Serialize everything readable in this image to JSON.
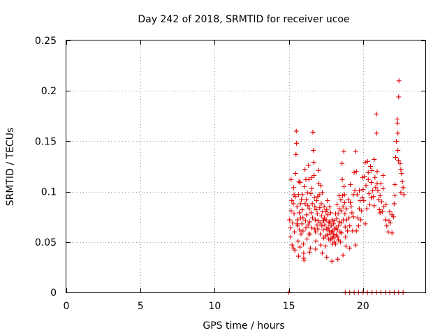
{
  "chart_data": {
    "type": "scatter",
    "title": "Day 242 of 2018, SRMTID for receiver ucoe",
    "xlabel": "GPS time / hours",
    "ylabel": "SRMTID / TECUs",
    "xlim": [
      0,
      24.2
    ],
    "ylim": [
      0,
      0.25
    ],
    "xticks": [
      0,
      5,
      10,
      15,
      20
    ],
    "xtick_labels": [
      "0",
      "5",
      "10",
      "15",
      "20"
    ],
    "yticks": [
      0,
      0.05,
      0.1,
      0.15,
      0.2,
      0.25
    ],
    "ytick_labels": [
      "0",
      "0.05",
      "0.1",
      "0.15",
      "0.2",
      "0.25"
    ],
    "grid": true,
    "legend": null,
    "marker": "+",
    "color": "#e00000",
    "series": [
      {
        "name": "SRMTID",
        "points": [
          [
            15.0,
            0.0
          ],
          [
            18.8,
            0.0
          ],
          [
            19.1,
            0.0
          ],
          [
            19.4,
            0.0
          ],
          [
            19.7,
            0.0
          ],
          [
            20.0,
            0.0
          ],
          [
            20.3,
            0.0
          ],
          [
            20.6,
            0.0
          ],
          [
            20.9,
            0.0
          ],
          [
            21.2,
            0.0
          ],
          [
            21.5,
            0.0
          ],
          [
            21.8,
            0.0
          ],
          [
            22.1,
            0.0
          ],
          [
            22.4,
            0.0
          ],
          [
            22.7,
            0.0
          ],
          [
            15.05,
            0.072
          ],
          [
            15.1,
            0.064
          ],
          [
            15.12,
            0.055
          ],
          [
            15.15,
            0.081
          ],
          [
            15.2,
            0.091
          ],
          [
            15.22,
            0.047
          ],
          [
            15.25,
            0.069
          ],
          [
            15.3,
            0.088
          ],
          [
            15.32,
            0.104
          ],
          [
            15.35,
            0.078
          ],
          [
            15.38,
            0.06
          ],
          [
            15.4,
            0.042
          ],
          [
            15.42,
            0.095
          ],
          [
            15.45,
            0.118
          ],
          [
            15.48,
            0.137
          ],
          [
            15.5,
            0.16
          ],
          [
            15.52,
            0.148
          ],
          [
            15.55,
            0.085
          ],
          [
            15.58,
            0.072
          ],
          [
            15.6,
            0.066
          ],
          [
            15.62,
            0.051
          ],
          [
            15.65,
            0.097
          ],
          [
            15.68,
            0.11
          ],
          [
            15.7,
            0.079
          ],
          [
            15.72,
            0.062
          ],
          [
            15.75,
            0.045
          ],
          [
            15.78,
            0.088
          ],
          [
            15.8,
            0.074
          ],
          [
            15.82,
            0.058
          ],
          [
            15.85,
            0.092
          ],
          [
            15.88,
            0.068
          ],
          [
            15.9,
            0.082
          ],
          [
            15.92,
            0.097
          ],
          [
            15.95,
            0.061
          ],
          [
            15.98,
            0.048
          ],
          [
            16.0,
            0.039
          ],
          [
            16.02,
            0.032
          ],
          [
            16.05,
            0.105
          ],
          [
            16.08,
            0.122
          ],
          [
            16.1,
            0.088
          ],
          [
            16.12,
            0.071
          ],
          [
            16.15,
            0.064
          ],
          [
            16.18,
            0.092
          ],
          [
            16.2,
            0.077
          ],
          [
            16.22,
            0.053
          ],
          [
            16.25,
            0.099
          ],
          [
            16.28,
            0.086
          ],
          [
            16.3,
            0.067
          ],
          [
            16.32,
            0.126
          ],
          [
            16.35,
            0.112
          ],
          [
            16.38,
            0.083
          ],
          [
            16.4,
            0.07
          ],
          [
            16.42,
            0.058
          ],
          [
            16.45,
            0.044
          ],
          [
            16.48,
            0.098
          ],
          [
            16.5,
            0.079
          ],
          [
            16.52,
            0.064
          ],
          [
            16.55,
            0.103
          ],
          [
            16.58,
            0.088
          ],
          [
            16.6,
            0.074
          ],
          [
            16.62,
            0.159
          ],
          [
            16.65,
            0.141
          ],
          [
            16.68,
            0.129
          ],
          [
            16.7,
            0.116
          ],
          [
            16.72,
            0.094
          ],
          [
            16.75,
            0.085
          ],
          [
            16.78,
            0.072
          ],
          [
            16.8,
            0.06
          ],
          [
            16.82,
            0.051
          ],
          [
            16.85,
            0.082
          ],
          [
            16.88,
            0.091
          ],
          [
            16.9,
            0.067
          ],
          [
            16.92,
            0.078
          ],
          [
            16.95,
            0.063
          ],
          [
            16.98,
            0.071
          ],
          [
            17.0,
            0.121
          ],
          [
            17.02,
            0.108
          ],
          [
            17.05,
            0.097
          ],
          [
            17.08,
            0.084
          ],
          [
            17.1,
            0.069
          ],
          [
            17.12,
            0.058
          ],
          [
            17.15,
            0.047
          ],
          [
            17.18,
            0.088
          ],
          [
            17.2,
            0.076
          ],
          [
            17.22,
            0.066
          ],
          [
            17.25,
            0.099
          ],
          [
            17.28,
            0.08
          ],
          [
            17.3,
            0.071
          ],
          [
            17.32,
            0.062
          ],
          [
            17.35,
            0.054
          ],
          [
            17.38,
            0.085
          ],
          [
            17.4,
            0.074
          ],
          [
            17.42,
            0.067
          ],
          [
            17.45,
            0.056
          ],
          [
            17.48,
            0.046
          ],
          [
            17.5,
            0.08
          ],
          [
            17.52,
            0.072
          ],
          [
            17.55,
            0.063
          ],
          [
            17.58,
            0.057
          ],
          [
            17.6,
            0.091
          ],
          [
            17.62,
            0.077
          ],
          [
            17.65,
            0.064
          ],
          [
            17.68,
            0.053
          ],
          [
            17.7,
            0.069
          ],
          [
            17.72,
            0.061
          ],
          [
            17.75,
            0.07
          ],
          [
            17.78,
            0.058
          ],
          [
            17.8,
            0.052
          ],
          [
            17.82,
            0.079
          ],
          [
            17.85,
            0.066
          ],
          [
            17.88,
            0.06
          ],
          [
            17.9,
            0.054
          ],
          [
            17.92,
            0.072
          ],
          [
            17.95,
            0.061
          ],
          [
            17.98,
            0.055
          ],
          [
            18.0,
            0.068
          ],
          [
            18.02,
            0.058
          ],
          [
            18.05,
            0.05
          ],
          [
            18.08,
            0.071
          ],
          [
            18.1,
            0.063
          ],
          [
            18.12,
            0.055
          ],
          [
            18.15,
            0.048
          ],
          [
            18.18,
            0.064
          ],
          [
            18.2,
            0.057
          ],
          [
            18.22,
            0.073
          ],
          [
            18.25,
            0.087
          ],
          [
            18.28,
            0.062
          ],
          [
            18.3,
            0.055
          ],
          [
            18.32,
            0.078
          ],
          [
            18.35,
            0.066
          ],
          [
            18.38,
            0.096
          ],
          [
            18.4,
            0.083
          ],
          [
            18.42,
            0.07
          ],
          [
            18.45,
            0.06
          ],
          [
            18.48,
            0.05
          ],
          [
            18.5,
            0.092
          ],
          [
            18.52,
            0.081
          ],
          [
            18.55,
            0.069
          ],
          [
            18.58,
            0.128
          ],
          [
            18.6,
            0.112
          ],
          [
            18.62,
            0.096
          ],
          [
            18.65,
            0.085
          ],
          [
            18.68,
            0.072
          ],
          [
            18.7,
            0.14
          ],
          [
            18.72,
            0.105
          ],
          [
            18.75,
            0.089
          ],
          [
            18.78,
            0.078
          ],
          [
            18.8,
            0.065
          ],
          [
            18.82,
            0.055
          ],
          [
            18.85,
            0.046
          ],
          [
            18.88,
            0.083
          ],
          [
            18.9,
            0.072
          ],
          [
            15.3,
            0.044
          ],
          [
            15.65,
            0.036
          ],
          [
            16.0,
            0.034
          ],
          [
            16.4,
            0.04
          ],
          [
            16.8,
            0.043
          ],
          [
            17.25,
            0.039
          ],
          [
            17.55,
            0.035
          ],
          [
            17.9,
            0.031
          ],
          [
            18.3,
            0.033
          ],
          [
            18.65,
            0.037
          ],
          [
            19.1,
            0.044
          ],
          [
            19.5,
            0.047
          ],
          [
            19.0,
            0.092
          ],
          [
            19.05,
            0.074
          ],
          [
            19.1,
            0.066
          ],
          [
            19.15,
            0.107
          ],
          [
            19.2,
            0.085
          ],
          [
            19.25,
            0.079
          ],
          [
            19.3,
            0.061
          ],
          [
            19.35,
            0.097
          ],
          [
            19.4,
            0.119
          ],
          [
            19.45,
            0.101
          ],
          [
            19.5,
            0.14
          ],
          [
            19.55,
            0.12
          ],
          [
            19.6,
            0.097
          ],
          [
            19.65,
            0.074
          ],
          [
            19.7,
            0.066
          ],
          [
            19.75,
            0.083
          ],
          [
            19.8,
            0.091
          ],
          [
            19.85,
            0.072
          ],
          [
            19.9,
            0.081
          ],
          [
            19.95,
            0.094
          ],
          [
            20.0,
            0.102
          ],
          [
            20.05,
            0.091
          ],
          [
            20.1,
            0.115
          ],
          [
            20.15,
            0.129
          ],
          [
            20.2,
            0.106
          ],
          [
            20.25,
            0.083
          ],
          [
            20.3,
            0.13
          ],
          [
            20.35,
            0.112
          ],
          [
            20.4,
            0.098
          ],
          [
            20.45,
            0.087
          ],
          [
            20.5,
            0.125
          ],
          [
            20.55,
            0.109
          ],
          [
            20.6,
            0.121
          ],
          [
            20.65,
            0.101
          ],
          [
            20.7,
            0.095
          ],
          [
            20.75,
            0.086
          ],
          [
            20.8,
            0.114
          ],
          [
            20.85,
            0.104
          ],
          [
            20.9,
            0.177
          ],
          [
            20.92,
            0.158
          ],
          [
            20.95,
            0.12
          ],
          [
            21.0,
            0.101
          ],
          [
            21.05,
            0.092
          ],
          [
            21.1,
            0.082
          ],
          [
            21.15,
            0.096
          ],
          [
            21.2,
            0.108
          ],
          [
            21.25,
            0.09
          ],
          [
            21.3,
            0.08
          ],
          [
            21.35,
            0.103
          ],
          [
            21.4,
            0.085
          ],
          [
            21.5,
            0.072
          ],
          [
            21.6,
            0.066
          ],
          [
            21.7,
            0.06
          ],
          [
            21.8,
            0.08
          ],
          [
            21.85,
            0.069
          ],
          [
            21.95,
            0.059
          ],
          [
            22.05,
            0.075
          ],
          [
            22.1,
            0.088
          ],
          [
            22.15,
            0.107
          ],
          [
            22.2,
            0.134
          ],
          [
            22.25,
            0.15
          ],
          [
            22.3,
            0.172
          ],
          [
            22.32,
            0.168
          ],
          [
            22.35,
            0.158
          ],
          [
            22.38,
            0.131
          ],
          [
            22.4,
            0.194
          ],
          [
            22.42,
            0.21
          ],
          [
            22.5,
            0.128
          ],
          [
            22.55,
            0.122
          ],
          [
            22.6,
            0.118
          ],
          [
            22.65,
            0.11
          ],
          [
            22.7,
            0.104
          ],
          [
            22.75,
            0.097
          ],
          [
            15.15,
            0.112
          ],
          [
            15.35,
            0.097
          ],
          [
            15.55,
            0.068
          ],
          [
            15.75,
            0.109
          ],
          [
            15.95,
            0.074
          ],
          [
            16.15,
            0.112
          ],
          [
            16.35,
            0.058
          ],
          [
            16.55,
            0.114
          ],
          [
            16.75,
            0.063
          ],
          [
            16.95,
            0.095
          ],
          [
            17.15,
            0.106
          ],
          [
            17.35,
            0.071
          ],
          [
            17.55,
            0.082
          ],
          [
            17.75,
            0.085
          ],
          [
            17.95,
            0.048
          ],
          [
            18.15,
            0.078
          ],
          [
            18.35,
            0.052
          ],
          [
            18.55,
            0.059
          ],
          [
            18.75,
            0.097
          ],
          [
            18.95,
            0.061
          ],
          [
            19.15,
            0.089
          ],
          [
            19.35,
            0.075
          ],
          [
            19.55,
            0.061
          ],
          [
            19.75,
            0.101
          ],
          [
            19.95,
            0.114
          ],
          [
            20.15,
            0.068
          ],
          [
            20.35,
            0.119
          ],
          [
            20.55,
            0.094
          ],
          [
            20.75,
            0.132
          ],
          [
            20.95,
            0.108
          ],
          [
            21.15,
            0.079
          ],
          [
            21.35,
            0.116
          ],
          [
            21.55,
            0.087
          ],
          [
            21.75,
            0.071
          ],
          [
            21.95,
            0.077
          ],
          [
            22.15,
            0.096
          ],
          [
            22.35,
            0.141
          ],
          [
            22.55,
            0.099
          ]
        ]
      }
    ]
  }
}
